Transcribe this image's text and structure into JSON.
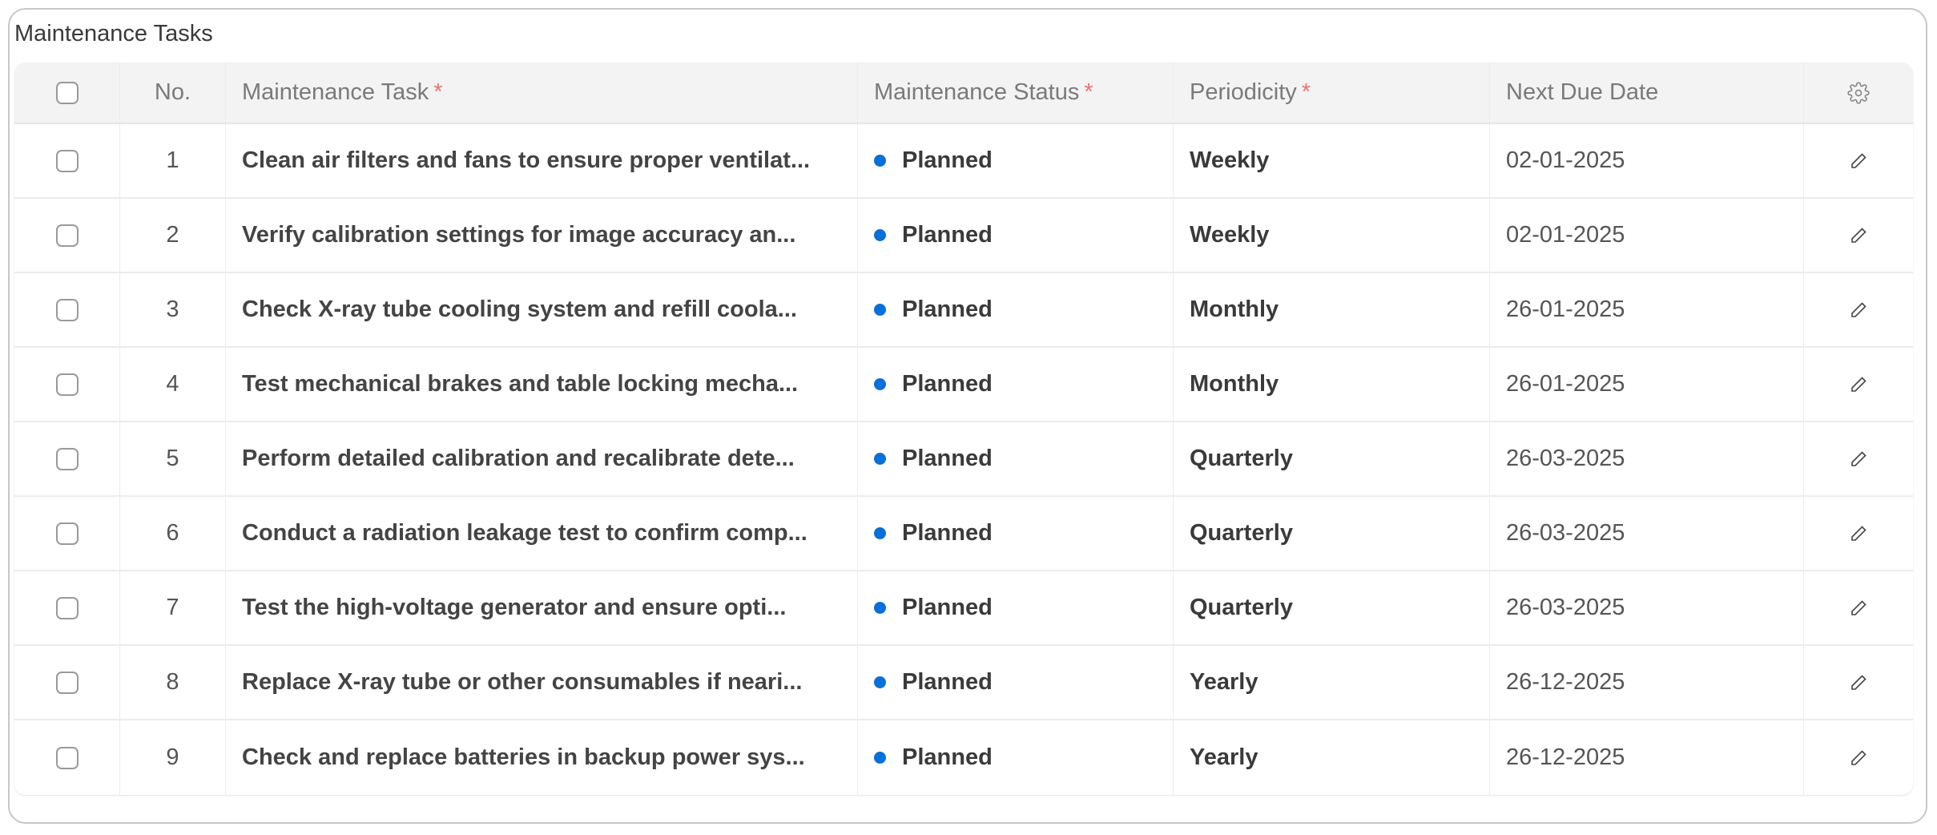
{
  "section_title": "Maintenance Tasks",
  "colors": {
    "status_planned": "#0a6fd6",
    "required_asterisk": "#e57373"
  },
  "columns": {
    "no": "No.",
    "task": "Maintenance Task",
    "status": "Maintenance Status",
    "periodicity": "Periodicity",
    "next_due": "Next Due Date",
    "required_mark": "*",
    "settings_icon": "gear-icon"
  },
  "rows": [
    {
      "no": "1",
      "task": "Clean air filters and fans to ensure proper ventilat...",
      "status": "Planned",
      "periodicity": "Weekly",
      "next_due": "02-01-2025"
    },
    {
      "no": "2",
      "task": "Verify calibration settings for image accuracy an...",
      "status": "Planned",
      "periodicity": "Weekly",
      "next_due": "02-01-2025"
    },
    {
      "no": "3",
      "task": "Check X-ray tube cooling system and refill coola...",
      "status": "Planned",
      "periodicity": "Monthly",
      "next_due": "26-01-2025"
    },
    {
      "no": "4",
      "task": "Test mechanical brakes and table locking mecha...",
      "status": "Planned",
      "periodicity": "Monthly",
      "next_due": "26-01-2025"
    },
    {
      "no": "5",
      "task": "Perform detailed calibration and recalibrate dete...",
      "status": "Planned",
      "periodicity": "Quarterly",
      "next_due": "26-03-2025"
    },
    {
      "no": "6",
      "task": "Conduct a radiation leakage test to confirm comp...",
      "status": "Planned",
      "periodicity": "Quarterly",
      "next_due": "26-03-2025"
    },
    {
      "no": "7",
      "task": "Test the high-voltage generator and ensure opti...",
      "status": "Planned",
      "periodicity": "Quarterly",
      "next_due": "26-03-2025"
    },
    {
      "no": "8",
      "task": "Replace X-ray tube or other consumables if neari...",
      "status": "Planned",
      "periodicity": "Yearly",
      "next_due": "26-12-2025"
    },
    {
      "no": "9",
      "task": "Check and replace batteries in backup power sys...",
      "status": "Planned",
      "periodicity": "Yearly",
      "next_due": "26-12-2025"
    }
  ]
}
